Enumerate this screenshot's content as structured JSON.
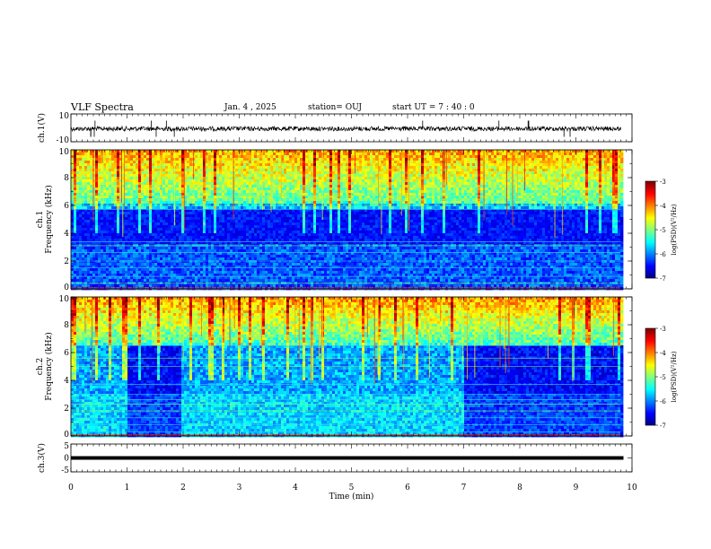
{
  "header": {
    "title": "VLF Spectra",
    "date": "Jan. 4 , 2025",
    "station": "station= OUJ",
    "start": "start  UT =   7 : 40 : 0"
  },
  "chart_data": [
    {
      "type": "line",
      "ylabel": "ch.1(V)",
      "ylim": [
        -10,
        10
      ],
      "yticks": [
        "10",
        "-10"
      ],
      "baseline_v": 0,
      "xlim": [
        0,
        9.8
      ]
    },
    {
      "type": "heatmap",
      "ylabel": "ch.1\nFrequency (kHz)",
      "ylabel_lines": [
        "ch.1",
        "Frequency (kHz)"
      ],
      "ylim": [
        0,
        10
      ],
      "yticks": [
        "0",
        "2",
        "4",
        "6",
        "8",
        "10"
      ],
      "xlim": [
        0,
        9.8
      ],
      "colorbar": {
        "label": "log(PSD)(V²/Hz)",
        "ticks": [
          "-3",
          "-4",
          "-5",
          "-6",
          "-7"
        ],
        "range": [
          -7,
          -3
        ]
      }
    },
    {
      "type": "heatmap",
      "ylabel": "ch.2\nFrequency (kHz)",
      "ylabel_lines": [
        "ch.2",
        "Frequency (kHz)"
      ],
      "ylim": [
        0,
        10
      ],
      "yticks": [
        "0",
        "2",
        "4",
        "6",
        "8",
        "10"
      ],
      "xlim": [
        0,
        9.8
      ],
      "colorbar": {
        "label": "log(PSD)(V²/Hz)",
        "ticks": [
          "-3",
          "-4",
          "-5",
          "-6",
          "-7"
        ],
        "range": [
          -7,
          -3
        ]
      }
    },
    {
      "type": "line",
      "ylabel": "ch.3(V)",
      "ylim": [
        -5,
        5
      ],
      "yticks": [
        "5",
        "0",
        "-5"
      ],
      "baseline_v": 0,
      "xlim": [
        0,
        9.8
      ]
    }
  ],
  "xaxis": {
    "label": "Time (min)",
    "range": [
      0,
      10
    ],
    "ticks": [
      "0",
      "1",
      "2",
      "3",
      "4",
      "5",
      "6",
      "7",
      "8",
      "9",
      "10"
    ]
  }
}
